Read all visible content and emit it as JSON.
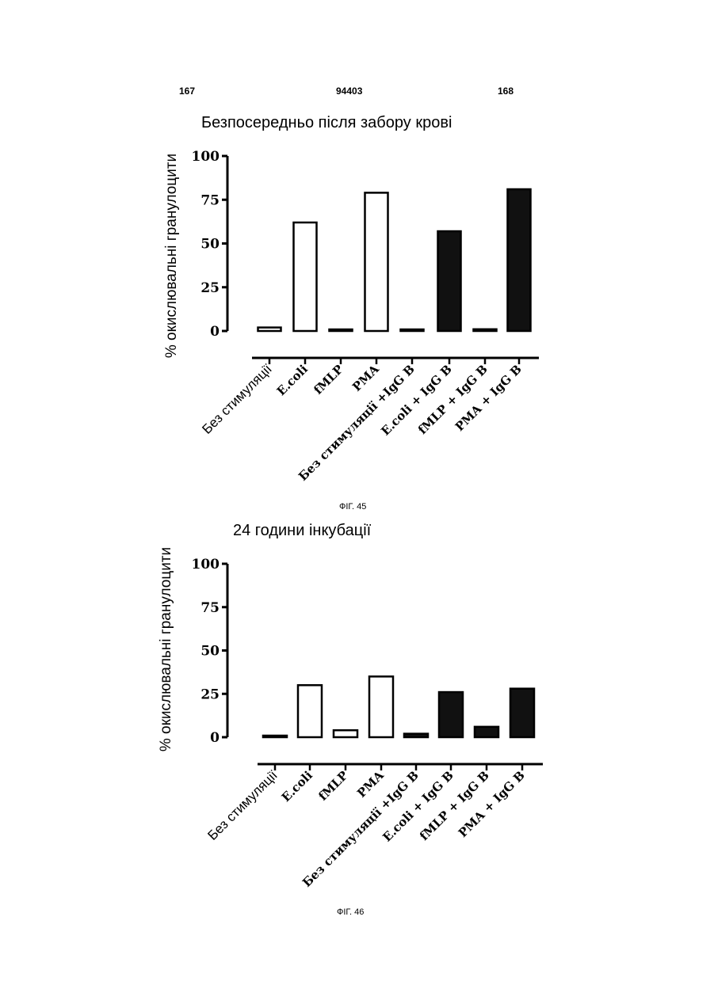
{
  "header": {
    "left_page": "167",
    "doc_number": "94403",
    "right_page": "168"
  },
  "chart_data": [
    {
      "type": "bar",
      "title": "Безпосередньо після забору крові",
      "ylabel": "% окислювальні гранулоцити",
      "xlabel": "",
      "ylim": [
        0,
        100
      ],
      "yticks": [
        "0",
        "25",
        "50",
        "75",
        "100"
      ],
      "categories": [
        "Без стимуляції",
        "E.coli",
        "fMLP",
        "PMA",
        "Без стимуляції +IgG B",
        "E.coli + IgG B",
        "fMLP + IgG B",
        "PMA + IgG B"
      ],
      "values": [
        2,
        62,
        0,
        79,
        0,
        57,
        1,
        81
      ],
      "bar_styles": [
        "open",
        "open",
        "open",
        "open",
        "filled",
        "filled",
        "filled",
        "filled"
      ],
      "colors": {
        "filled": "#111111",
        "open": "#ffffff",
        "stroke": "#000000"
      },
      "caption": "ФІГ. 45"
    },
    {
      "type": "bar",
      "title": "24 години інкубації",
      "ylabel": "% окислювальні гранулоцити",
      "xlabel": "",
      "ylim": [
        0,
        100
      ],
      "yticks": [
        "0",
        "25",
        "50",
        "75",
        "100"
      ],
      "categories": [
        "Без стимуляції",
        "E.coli",
        "fMLP",
        "PMA",
        "Без стимуляції +IgG B",
        "E.coli + IgG B",
        "fMLP + IgG B",
        "PMA + IgG B"
      ],
      "values": [
        0,
        30,
        4,
        35,
        2,
        26,
        6,
        28
      ],
      "bar_styles": [
        "open",
        "open",
        "open",
        "open",
        "filled",
        "filled",
        "filled",
        "filled"
      ],
      "colors": {
        "filled": "#111111",
        "open": "#ffffff",
        "stroke": "#000000"
      },
      "caption": "ФІГ. 46"
    }
  ]
}
